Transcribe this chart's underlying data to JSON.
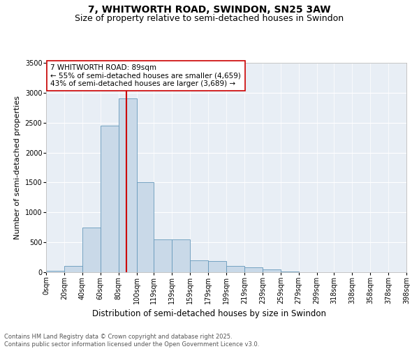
{
  "title1": "7, WHITWORTH ROAD, SWINDON, SN25 3AW",
  "title2": "Size of property relative to semi-detached houses in Swindon",
  "xlabel": "Distribution of semi-detached houses by size in Swindon",
  "ylabel": "Number of semi-detached properties",
  "bin_labels": [
    "0sqm",
    "20sqm",
    "40sqm",
    "60sqm",
    "80sqm",
    "100sqm",
    "119sqm",
    "139sqm",
    "159sqm",
    "179sqm",
    "199sqm",
    "219sqm",
    "239sqm",
    "259sqm",
    "279sqm",
    "299sqm",
    "318sqm",
    "338sqm",
    "358sqm",
    "378sqm",
    "398sqm"
  ],
  "bin_edges": [
    0,
    20,
    40,
    60,
    80,
    100,
    119,
    139,
    159,
    179,
    199,
    219,
    239,
    259,
    279,
    299,
    318,
    338,
    358,
    378,
    398
  ],
  "bar_heights": [
    20,
    100,
    750,
    2450,
    2900,
    1500,
    550,
    550,
    200,
    190,
    100,
    80,
    50,
    15,
    5,
    2,
    1,
    0,
    0,
    0
  ],
  "bar_color": "#c9d9e8",
  "bar_edge_color": "#6699bb",
  "property_size": 89,
  "vline_color": "#cc0000",
  "annotation_text": "7 WHITWORTH ROAD: 89sqm\n← 55% of semi-detached houses are smaller (4,659)\n43% of semi-detached houses are larger (3,689) →",
  "annotation_box_color": "#ffffff",
  "annotation_border_color": "#cc0000",
  "ylim": [
    0,
    3500
  ],
  "yticks": [
    0,
    500,
    1000,
    1500,
    2000,
    2500,
    3000,
    3500
  ],
  "plot_bg_color": "#e8eef5",
  "footer_text": "Contains HM Land Registry data © Crown copyright and database right 2025.\nContains public sector information licensed under the Open Government Licence v3.0.",
  "title1_fontsize": 10,
  "title2_fontsize": 9,
  "xlabel_fontsize": 8.5,
  "ylabel_fontsize": 8,
  "tick_fontsize": 7,
  "annotation_fontsize": 7.5
}
